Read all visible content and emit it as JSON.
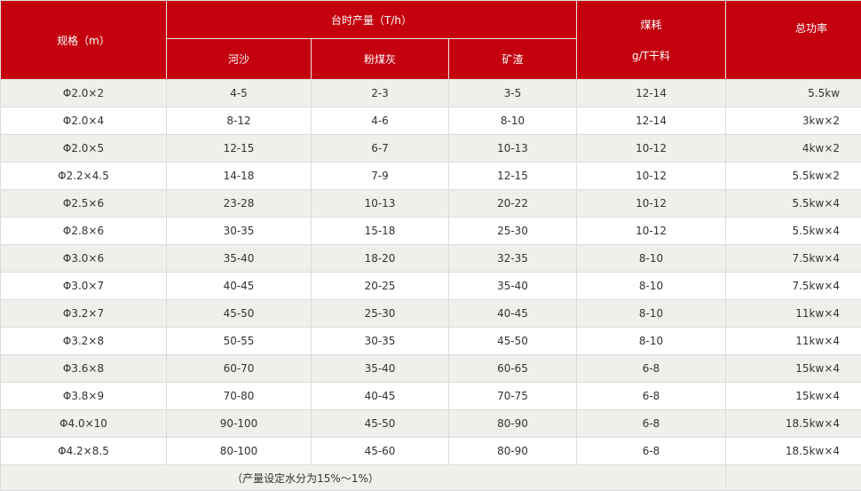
{
  "header": {
    "spec": "规格（m）",
    "output": "台时产量（T/h）",
    "sand": "河沙",
    "flyash": "粉煤灰",
    "slag": "矿渣",
    "coal": "煤耗",
    "coal_unit": "g/T干料",
    "power": "总功率"
  },
  "rows": [
    [
      "Φ2.0×2",
      "4-5",
      "2-3",
      "3-5",
      "12-14",
      "5.5kw"
    ],
    [
      "Φ2.0×4",
      "8-12",
      "4-6",
      "8-10",
      "12-14",
      "3kw×2"
    ],
    [
      "Φ2.0×5",
      "12-15",
      "6-7",
      "10-13",
      "10-12",
      "4kw×2"
    ],
    [
      "Φ2.2×4.5",
      "14-18",
      "7-9",
      "12-15",
      "10-12",
      "5.5kw×2"
    ],
    [
      "Φ2.5×6",
      "23-28",
      "10-13",
      "20-22",
      "10-12",
      "5.5kw×4"
    ],
    [
      "Φ2.8×6",
      "30-35",
      "15-18",
      "25-30",
      "10-12",
      "5.5kw×4"
    ],
    [
      "Φ3.0×6",
      "35-40",
      "18-20",
      "32-35",
      "8-10",
      "7.5kw×4"
    ],
    [
      "Φ3.0×7",
      "40-45",
      "20-25",
      "35-40",
      "8-10",
      "7.5kw×4"
    ],
    [
      "Φ3.2×7",
      "45-50",
      "25-30",
      "40-45",
      "8-10",
      "11kw×4"
    ],
    [
      "Φ3.2×8",
      "50-55",
      "30-35",
      "45-50",
      "8-10",
      "11kw×4"
    ],
    [
      "Φ3.6×8",
      "60-70",
      "35-40",
      "60-65",
      "6-8",
      "15kw×4"
    ],
    [
      "Φ3.8×9",
      "70-80",
      "40-45",
      "70-75",
      "6-8",
      "15kw×4"
    ],
    [
      "Φ4.0×10",
      "90-100",
      "45-50",
      "80-90",
      "6-8",
      "18.5kw×4"
    ],
    [
      "Φ4.2×8.5",
      "80-100",
      "45-60",
      "80-90",
      "6-8",
      "18.5kw×4"
    ]
  ],
  "footnote": "（产量设定水分为15%～1%）"
}
